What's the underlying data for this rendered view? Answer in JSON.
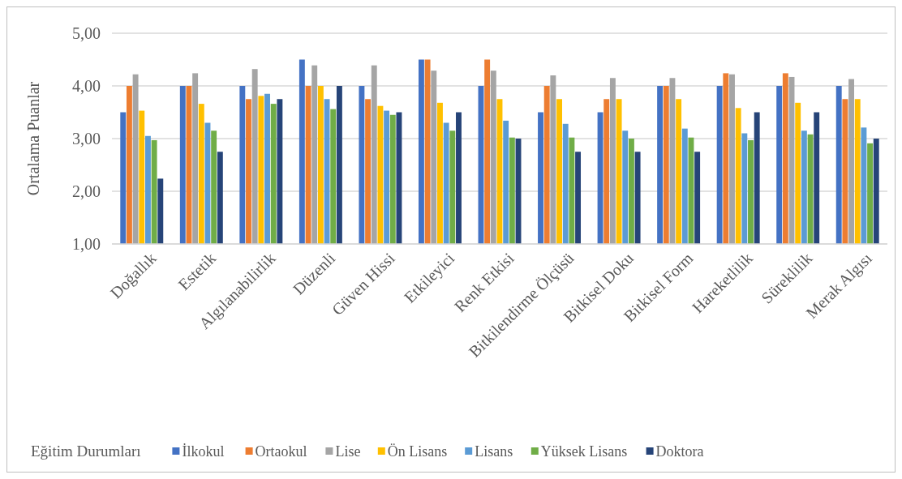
{
  "chart_data": {
    "type": "bar",
    "ylabel": "Ortalama Puanlar",
    "legend_title": "Eğitim Durumları",
    "legend": "bottom",
    "grid": "y",
    "categories": [
      "Doğallık",
      "Estetik",
      "Algılanabilirlik",
      "Düzenli",
      "Güven Hissi",
      "Etkileyici",
      "Renk Etkisi",
      "Bitkilendirme Ölçüsü",
      "Bitkisel Doku",
      "Bitkisel Form",
      "Hareketlilik",
      "Süreklilik",
      "Merak Algısı"
    ],
    "ylim": [
      1,
      5
    ],
    "yticks": [
      {
        "value": 1,
        "label": "1,00"
      },
      {
        "value": 2,
        "label": "2,00"
      },
      {
        "value": 3,
        "label": "3,00"
      },
      {
        "value": 4,
        "label": "4,00"
      },
      {
        "value": 5,
        "label": "5,00"
      }
    ],
    "series": [
      {
        "name": "İlkokul",
        "color": "#4472c4",
        "values": [
          3.5,
          4.0,
          4.0,
          4.5,
          4.0,
          4.5,
          4.0,
          3.5,
          3.5,
          4.0,
          4.0,
          4.0,
          4.0
        ]
      },
      {
        "name": "Ortaokul",
        "color": "#ed7d31",
        "values": [
          4.0,
          4.0,
          3.75,
          4.0,
          3.75,
          4.5,
          4.5,
          4.0,
          3.75,
          4.0,
          4.24,
          4.24,
          3.75
        ]
      },
      {
        "name": "Lise",
        "color": "#a5a5a5",
        "values": [
          4.22,
          4.24,
          4.32,
          4.39,
          4.39,
          4.29,
          4.29,
          4.2,
          4.15,
          4.15,
          4.22,
          4.17,
          4.13
        ]
      },
      {
        "name": "Ön Lisans",
        "color": "#ffc000",
        "values": [
          3.53,
          3.66,
          3.81,
          4.0,
          3.62,
          3.68,
          3.75,
          3.75,
          3.75,
          3.75,
          3.58,
          3.68,
          3.75
        ]
      },
      {
        "name": "Lisans",
        "color": "#5b9bd5",
        "values": [
          3.05,
          3.3,
          3.85,
          3.75,
          3.53,
          3.3,
          3.34,
          3.28,
          3.15,
          3.19,
          3.1,
          3.15,
          3.21
        ]
      },
      {
        "name": "Yüksek Lisans",
        "color": "#70ad47",
        "values": [
          2.97,
          3.15,
          3.66,
          3.56,
          3.45,
          3.15,
          3.02,
          3.02,
          3.0,
          3.02,
          2.97,
          3.08,
          2.91
        ]
      },
      {
        "name": "Doktora",
        "color": "#264478",
        "values": [
          2.24,
          2.75,
          3.75,
          4.0,
          3.5,
          3.5,
          3.0,
          2.75,
          2.75,
          2.75,
          3.5,
          3.5,
          3.0
        ]
      }
    ]
  }
}
